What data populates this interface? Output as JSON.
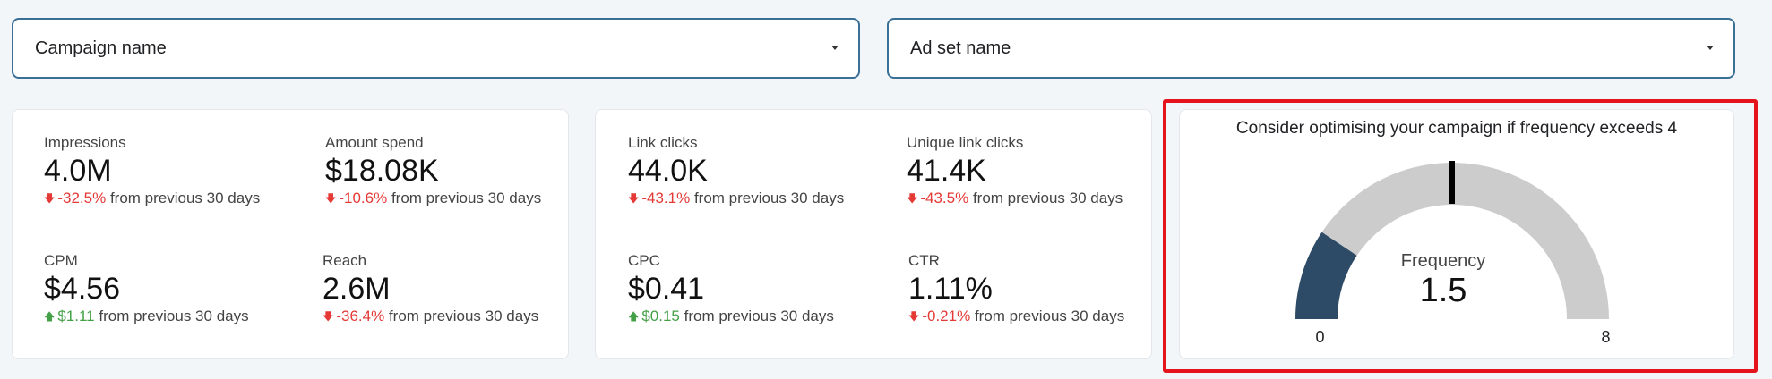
{
  "filters": {
    "campaign": {
      "label": "Campaign name"
    },
    "adset": {
      "label": "Ad set name"
    }
  },
  "card1": {
    "metrics": [
      {
        "label": "Impressions",
        "value": "4.0M",
        "delta": "-32.5%",
        "direction": "down",
        "suffix": "from previous 30 days"
      },
      {
        "label": "Amount spend",
        "value": "$18.08K",
        "delta": "-10.6%",
        "direction": "down",
        "suffix": "from previous 30 days"
      },
      {
        "label": "CPM",
        "value": "$4.56",
        "delta": "$1.11",
        "direction": "up",
        "suffix": "from previous 30 days"
      },
      {
        "label": "Reach",
        "value": "2.6M",
        "delta": "-36.4%",
        "direction": "down",
        "suffix": "from previous 30 days"
      }
    ]
  },
  "card2": {
    "metrics": [
      {
        "label": "Link clicks",
        "value": "44.0K",
        "delta": "-43.1%",
        "direction": "down",
        "suffix": "from previous 30 days"
      },
      {
        "label": "Unique link clicks",
        "value": "41.4K",
        "delta": "-43.5%",
        "direction": "down",
        "suffix": "from previous 30 days"
      },
      {
        "label": "CPC",
        "value": "$0.41",
        "delta": "$0.15",
        "direction": "up",
        "suffix": "from previous 30 days"
      },
      {
        "label": "CTR",
        "value": "1.11%",
        "delta": "-0.21%",
        "direction": "down",
        "suffix": "from previous 30 days"
      }
    ]
  },
  "gauge": {
    "title": "Consider optimising your campaign if frequency exceeds 4",
    "metric_label": "Frequency",
    "value_text": "1.5",
    "value": 1.5,
    "min": 0,
    "max": 8,
    "min_label": "0",
    "max_label": "8",
    "target": 4,
    "fill_color": "#2d4a66",
    "track_color": "#cccccc",
    "target_color": "#000000"
  },
  "colors": {
    "filter_border": "#3a6f96",
    "negative": "#e53935",
    "positive": "#43a047",
    "highlight": "#e5141c"
  }
}
